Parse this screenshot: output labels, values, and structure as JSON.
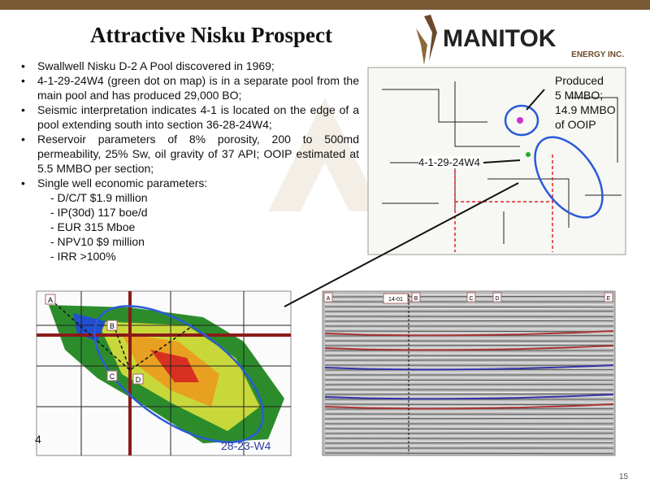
{
  "header": {
    "title": "Attractive Nisku Prospect",
    "logo": {
      "name": "MANITOK",
      "tagline": "ENERGY INC."
    }
  },
  "bullets": [
    "Swallwell Nisku D-2 A  Pool discovered in 1969;",
    "4-1-29-24W4 (green dot on map) is in a separate pool from the main pool and has produced 29,000 BO;",
    "Seismic interpretation indicates 4-1 is located on the edge of a pool extending south into section 36-28-24W4;",
    "Reservoir  parameters of 8% porosity, 200 to 500md permeability, 25% Sw, oil gravity of 37 API; OOIP estimated at 5.5 MMBO per section;",
    "Single well economic parameters:"
  ],
  "economics": [
    "- D/C/T $1.9 million",
    "- IP(30d) 117 boe/d",
    "- EUR 315 Mboe",
    "- NPV10 $9 million",
    "- IRR >100%"
  ],
  "map_top": {
    "callout": [
      "Produced",
      "5 MMBO;",
      "14.9 MMBO",
      "of OOIP"
    ],
    "well_label": "4-1-29-24W4"
  },
  "map_bottom": {
    "points": [
      "A",
      "B",
      "C",
      "D"
    ],
    "section_label": "28-23-W4",
    "corner_label": "4"
  },
  "seismic": {
    "well_label": "14-01",
    "markers": [
      "A",
      "B",
      "C",
      "D",
      "E"
    ]
  },
  "page_number": "15"
}
